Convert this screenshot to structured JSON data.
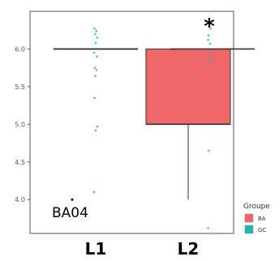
{
  "chart_data": {
    "type": "box",
    "categories": [
      "L1",
      "L2"
    ],
    "ylim": [
      3.55,
      6.5
    ],
    "yticks": [
      4.0,
      4.5,
      5.0,
      5.5,
      6.0
    ],
    "ytick_labels": [
      "4.0",
      "4.5",
      "5.0",
      "5.5",
      "6.0"
    ],
    "grid": false,
    "colors": {
      "BA": "#f0676a",
      "GC": "#22b5b5"
    },
    "series": [
      {
        "name": "BA",
        "color": "#f0676a",
        "boxes": [
          {
            "category": "L1",
            "min": 6.0,
            "q1": 6.0,
            "median": 6.0,
            "q3": 6.0,
            "max": 6.0
          },
          {
            "category": "L2",
            "min": 4.0,
            "q1": 5.0,
            "median": 5.0,
            "q3": 6.0,
            "max": 6.0
          }
        ],
        "outliers": [
          {
            "category": "L1",
            "y": 4.0
          }
        ]
      },
      {
        "name": "GC",
        "color": "#22b5b5",
        "boxes": [
          {
            "category": "L1",
            "min": 6.0,
            "q1": 6.0,
            "median": 6.0,
            "q3": 6.0,
            "max": 6.0
          },
          {
            "category": "L2",
            "min": 6.0,
            "q1": 6.0,
            "median": 6.0,
            "q3": 6.0,
            "max": 6.0
          }
        ]
      }
    ],
    "jitter_points": [
      {
        "category": "L1",
        "series": "GC",
        "y": 6.27
      },
      {
        "category": "L1",
        "series": "GC",
        "y": 6.24
      },
      {
        "category": "L1",
        "series": "GC",
        "y": 6.2
      },
      {
        "category": "L1",
        "series": "GC",
        "y": 6.15
      },
      {
        "category": "L1",
        "series": "GC",
        "y": 6.08
      },
      {
        "category": "L1",
        "series": "GC",
        "y": 5.95
      },
      {
        "category": "L1",
        "series": "GC",
        "y": 5.9
      },
      {
        "category": "L1",
        "series": "GC",
        "y": 5.75
      },
      {
        "category": "L1",
        "series": "GC",
        "y": 5.35
      },
      {
        "category": "L1",
        "series": "BA",
        "y": 5.72
      },
      {
        "category": "L1",
        "series": "BA",
        "y": 5.64
      },
      {
        "category": "L1",
        "series": "BA",
        "y": 4.97
      },
      {
        "category": "L1",
        "series": "GC",
        "y": 4.92
      },
      {
        "category": "L1",
        "series": "GC",
        "y": 4.1
      },
      {
        "category": "L2",
        "series": "GC",
        "y": 6.27
      },
      {
        "category": "L2",
        "series": "GC",
        "y": 6.18
      },
      {
        "category": "L2",
        "series": "GC",
        "y": 6.12
      },
      {
        "category": "L2",
        "series": "GC",
        "y": 6.07
      },
      {
        "category": "L2",
        "series": "GC",
        "y": 5.95
      },
      {
        "category": "L2",
        "series": "GC",
        "y": 5.88
      },
      {
        "category": "L2",
        "series": "GC",
        "y": 5.82
      },
      {
        "category": "L2",
        "series": "GC",
        "y": 5.76
      },
      {
        "category": "L2",
        "series": "BA",
        "y": 5.7
      },
      {
        "category": "L2",
        "series": "BA",
        "y": 4.65
      },
      {
        "category": "L2",
        "series": "GC",
        "y": 3.62
      }
    ],
    "annotations": [
      {
        "text": "BA04",
        "category": "L1",
        "y": 3.88
      },
      {
        "text": "*",
        "category": "L2",
        "y": 6.35
      }
    ],
    "legend": {
      "title": "Groupe",
      "position": "bottom-right",
      "items": [
        {
          "label": "BA",
          "color": "#f0676a"
        },
        {
          "label": "GC",
          "color": "#22b5b5"
        }
      ]
    }
  }
}
